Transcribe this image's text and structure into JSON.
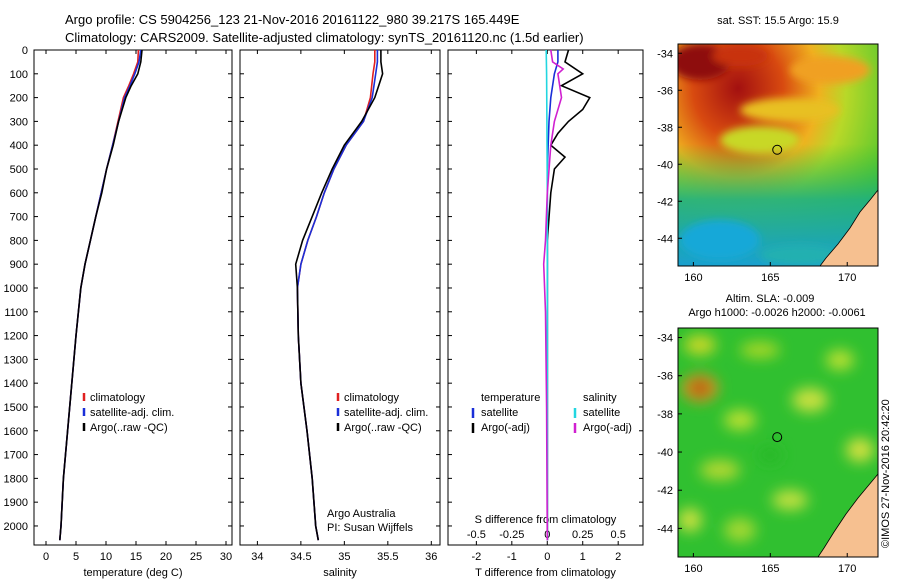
{
  "header": {
    "title_line1": "Argo profile: CS 5904256_123 21-Nov-2016 20161122_980 39.217S 165.449E",
    "title_line2": "Climatology: CARS2009. Satellite-adjusted climatology: synTS_20161120.nc (1.5d earlier)"
  },
  "footer": {
    "copyright": "©IMOS 27-Nov-2016 20:42:20"
  },
  "credits": {
    "line1": "Argo Australia",
    "line2": "PI: Susan Wijffels"
  },
  "colors": {
    "climatology": "#e02020",
    "satellite": "#1a2fd8",
    "argo": "#000000",
    "satellite_salinity": "#22d6e0",
    "argo_salinity_adj": "#d020d0"
  },
  "depth_axis": {
    "range": [
      0,
      2080
    ],
    "ticks": [
      0,
      100,
      200,
      300,
      400,
      500,
      600,
      700,
      800,
      900,
      1000,
      1100,
      1200,
      1300,
      1400,
      1500,
      1600,
      1700,
      1800,
      1900,
      2000
    ]
  },
  "chart_data": [
    {
      "id": "temperature",
      "type": "line",
      "xlabel": "temperature (deg C)",
      "xlim": [
        -2,
        31
      ],
      "xticks": [
        0,
        5,
        10,
        15,
        20,
        25,
        30
      ],
      "legend": {
        "placement": "lower-left",
        "items": [
          "climatology",
          "satellite-adj. clim.",
          "Argo(..raw -QC)"
        ]
      },
      "series": [
        {
          "name": "climatology",
          "color_key": "climatology",
          "x": [
            15.4,
            15.3,
            14.6,
            13.8,
            12.9,
            12.0,
            11.1,
            10.1,
            9.2,
            8.3,
            7.4,
            6.5,
            5.8,
            5.0,
            4.3,
            3.6,
            2.9,
            2.5,
            2.3
          ],
          "y": [
            0,
            50,
            100,
            150,
            200,
            300,
            400,
            500,
            600,
            700,
            800,
            900,
            1000,
            1200,
            1400,
            1600,
            1800,
            2000,
            2060
          ]
        },
        {
          "name": "satellite-adj. clim.",
          "color_key": "satellite",
          "x": [
            15.8,
            15.5,
            14.8,
            14.0,
            13.1,
            12.1,
            11.1,
            10.1,
            9.2,
            8.3,
            7.4,
            6.5,
            5.8,
            5.0,
            4.3,
            3.6,
            2.9,
            2.5,
            2.3
          ],
          "y": [
            0,
            50,
            100,
            150,
            200,
            300,
            400,
            500,
            600,
            700,
            800,
            900,
            1000,
            1200,
            1400,
            1600,
            1800,
            2000,
            2060
          ]
        },
        {
          "name": "Argo(..raw -QC)",
          "color_key": "argo",
          "x": [
            16.0,
            15.8,
            15.3,
            14.2,
            13.3,
            12.1,
            11.2,
            10.1,
            9.3,
            8.3,
            7.4,
            6.5,
            5.8,
            5.0,
            4.3,
            3.6,
            2.9,
            2.5,
            2.3
          ],
          "y": [
            0,
            50,
            100,
            150,
            200,
            300,
            400,
            500,
            600,
            700,
            800,
            900,
            1000,
            1200,
            1400,
            1600,
            1800,
            2000,
            2060
          ]
        }
      ]
    },
    {
      "id": "salinity",
      "type": "line",
      "xlabel": "salinity",
      "xlim": [
        33.8,
        36.1
      ],
      "xticks": [
        34,
        34.5,
        35,
        35.5,
        36
      ],
      "legend": {
        "placement": "lower-right",
        "items": [
          "climatology",
          "satellite-adj. clim.",
          "Argo(..raw -QC)"
        ]
      },
      "series": [
        {
          "name": "climatology",
          "color_key": "climatology",
          "x": [
            35.35,
            35.35,
            35.33,
            35.3,
            35.22,
            35.02,
            34.88,
            34.77,
            34.68,
            34.58,
            34.5,
            34.46,
            34.47,
            34.5,
            34.57,
            34.63,
            34.67,
            34.7
          ],
          "y": [
            0,
            50,
            100,
            200,
            300,
            400,
            500,
            600,
            700,
            800,
            900,
            1000,
            1200,
            1400,
            1600,
            1800,
            2000,
            2060
          ]
        },
        {
          "name": "satellite-adj. clim.",
          "color_key": "satellite",
          "x": [
            35.38,
            35.38,
            35.36,
            35.32,
            35.22,
            35.02,
            34.88,
            34.77,
            34.68,
            34.58,
            34.5,
            34.46,
            34.47,
            34.5,
            34.57,
            34.63,
            34.67,
            34.7
          ],
          "y": [
            0,
            50,
            100,
            200,
            300,
            400,
            500,
            600,
            700,
            800,
            900,
            1000,
            1200,
            1400,
            1600,
            1800,
            2000,
            2060
          ]
        },
        {
          "name": "Argo(..raw -QC)",
          "color_key": "argo",
          "x": [
            35.42,
            35.42,
            35.44,
            35.35,
            35.2,
            35.0,
            34.86,
            34.74,
            34.63,
            34.52,
            34.44,
            34.46,
            34.47,
            34.5,
            34.57,
            34.63,
            34.67,
            34.7
          ],
          "y": [
            0,
            50,
            100,
            200,
            300,
            400,
            500,
            600,
            700,
            800,
            900,
            1000,
            1200,
            1400,
            1600,
            1800,
            2000,
            2060
          ]
        }
      ]
    },
    {
      "id": "difference",
      "type": "line",
      "xlabel": "T difference from climatology",
      "xlabel_top": "S difference from climatology",
      "xlim": [
        -2.8,
        2.7
      ],
      "xticks": [
        -2,
        -1,
        0,
        1,
        2
      ],
      "sticks": [
        -0.5,
        -0.25,
        0,
        0.25,
        0.5
      ],
      "legend": {
        "placement": "lower-center",
        "temperature_header": "temperature",
        "salinity_header": "salinity",
        "items": [
          "satellite",
          "Argo(-adj)",
          "satellite",
          "Argo(-adj)"
        ]
      },
      "series": [
        {
          "name": "satellite",
          "group": "temperature",
          "color_key": "satellite",
          "x": [
            0.3,
            0.3,
            0.2,
            0.1,
            0.05,
            0,
            0,
            0,
            0
          ],
          "y": [
            0,
            50,
            100,
            200,
            300,
            500,
            1000,
            1500,
            2060
          ]
        },
        {
          "name": "Argo(-adj)",
          "group": "temperature",
          "color_key": "argo",
          "x": [
            0.6,
            0.5,
            1.0,
            0.4,
            1.2,
            1.0,
            0.6,
            0.3,
            0.1,
            0.5,
            0.2,
            0.1,
            0,
            0,
            0,
            0
          ],
          "y": [
            0,
            50,
            100,
            150,
            200,
            250,
            300,
            350,
            400,
            450,
            500,
            600,
            800,
            1000,
            1500,
            2060
          ]
        },
        {
          "name": "satellite",
          "group": "salinity",
          "color_key": "satellite_salinity",
          "x": [
            -0.03,
            -0.02,
            -0.01,
            0,
            0,
            0
          ],
          "y": [
            0,
            100,
            300,
            600,
            1000,
            2060
          ]
        },
        {
          "name": "Argo(-adj)",
          "group": "salinity",
          "color_key": "argo_salinity_adj",
          "x": [
            0.1,
            0.15,
            0.45,
            0.3,
            0.4,
            0.2,
            0.1,
            0,
            -0.05,
            -0.1,
            -0.05,
            -0.02,
            0
          ],
          "y": [
            0,
            50,
            80,
            100,
            200,
            300,
            400,
            600,
            800,
            900,
            1100,
            1500,
            2060
          ]
        }
      ]
    },
    {
      "id": "sst-map",
      "type": "heatmap",
      "title": "sat. SST: 15.5 Argo: 15.9",
      "xticks": [
        160,
        165,
        170
      ],
      "yticks": [
        -34,
        -36,
        -38,
        -40,
        -42,
        -44
      ],
      "xlim": [
        159,
        172
      ],
      "ylim": [
        -45.5,
        -33.5
      ],
      "marker": {
        "lon": 165.449,
        "lat": -39.217
      }
    },
    {
      "id": "sla-map",
      "type": "heatmap",
      "title": "Altim. SLA: -0.009",
      "subtitle": "Argo h1000: -0.0026 h2000: -0.0061",
      "xticks": [
        160,
        165,
        170
      ],
      "yticks": [
        -34,
        -36,
        -38,
        -40,
        -42,
        -44
      ],
      "xlim": [
        159,
        172
      ],
      "ylim": [
        -45.5,
        -33.5
      ],
      "marker": {
        "lon": 165.449,
        "lat": -39.217
      }
    }
  ]
}
